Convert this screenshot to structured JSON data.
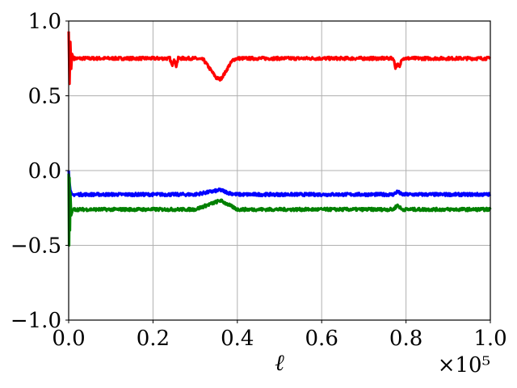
{
  "chart_data": {
    "type": "line",
    "title": "",
    "xlabel": "ℓ",
    "ylabel": "",
    "x_offset_label": "×10⁵",
    "xlim": [
      0,
      1.0
    ],
    "ylim": [
      -1.0,
      1.0
    ],
    "grid": true,
    "x_ticks": [
      0.0,
      0.2,
      0.4,
      0.6,
      0.8,
      1.0
    ],
    "x_tick_labels": [
      "0.0",
      "0.2",
      "0.4",
      "0.6",
      "0.8",
      "1.0"
    ],
    "y_ticks": [
      -1.0,
      -0.5,
      0.0,
      0.5,
      1.0
    ],
    "y_tick_labels": [
      "−1.0",
      "−0.5",
      "0.0",
      "0.5",
      "1.0"
    ],
    "series": [
      {
        "color": "#ff0000",
        "x": [
          0.0,
          0.002,
          0.004,
          0.006,
          0.008,
          0.012,
          0.05,
          0.1,
          0.15,
          0.2,
          0.24,
          0.245,
          0.25,
          0.255,
          0.26,
          0.3,
          0.32,
          0.33,
          0.34,
          0.35,
          0.36,
          0.37,
          0.38,
          0.39,
          0.4,
          0.5,
          0.6,
          0.7,
          0.77,
          0.775,
          0.78,
          0.785,
          0.79,
          0.8,
          0.9,
          1.0
        ],
        "values": [
          0.93,
          0.58,
          0.86,
          0.68,
          0.78,
          0.75,
          0.75,
          0.75,
          0.75,
          0.75,
          0.75,
          0.7,
          0.75,
          0.7,
          0.75,
          0.75,
          0.74,
          0.7,
          0.66,
          0.62,
          0.61,
          0.65,
          0.7,
          0.74,
          0.75,
          0.75,
          0.75,
          0.75,
          0.75,
          0.69,
          0.71,
          0.69,
          0.75,
          0.75,
          0.75,
          0.75
        ]
      },
      {
        "color": "#0000ff",
        "x": [
          0.0,
          0.002,
          0.004,
          0.008,
          0.012,
          0.05,
          0.1,
          0.2,
          0.3,
          0.32,
          0.34,
          0.36,
          0.38,
          0.4,
          0.5,
          0.6,
          0.7,
          0.77,
          0.78,
          0.79,
          0.8,
          0.9,
          1.0
        ],
        "values": [
          0.0,
          -0.08,
          -0.13,
          -0.16,
          -0.16,
          -0.16,
          -0.16,
          -0.16,
          -0.16,
          -0.15,
          -0.14,
          -0.13,
          -0.15,
          -0.16,
          -0.16,
          -0.16,
          -0.16,
          -0.16,
          -0.14,
          -0.16,
          -0.16,
          -0.16,
          -0.16
        ]
      },
      {
        "color": "#008000",
        "x": [
          0.0,
          0.001,
          0.002,
          0.003,
          0.004,
          0.006,
          0.01,
          0.05,
          0.1,
          0.2,
          0.3,
          0.32,
          0.34,
          0.36,
          0.38,
          0.4,
          0.5,
          0.6,
          0.7,
          0.77,
          0.78,
          0.79,
          0.8,
          0.9,
          1.0
        ],
        "values": [
          -0.02,
          -0.5,
          -0.05,
          -0.4,
          -0.15,
          -0.3,
          -0.26,
          -0.26,
          -0.26,
          -0.26,
          -0.26,
          -0.24,
          -0.22,
          -0.2,
          -0.23,
          -0.26,
          -0.26,
          -0.26,
          -0.26,
          -0.26,
          -0.23,
          -0.26,
          -0.26,
          -0.26,
          -0.26
        ]
      }
    ]
  }
}
